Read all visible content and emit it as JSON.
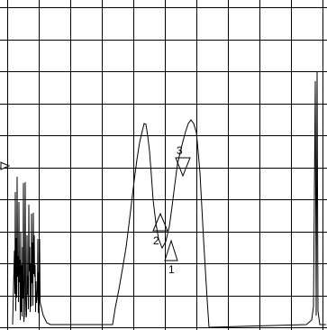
{
  "display": {
    "background": "#ffffff",
    "grid_color": "#000000",
    "trace_color": "#000000",
    "grid": {
      "cols": 10,
      "rows": 10
    }
  },
  "reference_marker": {
    "icon": "triangle-right-icon"
  },
  "markers": [
    {
      "label": "1",
      "icon": "triangle-up-icon"
    },
    {
      "label": "2",
      "icon": "triangle-up-icon"
    },
    {
      "label": "3",
      "icon": "triangle-down-icon"
    }
  ]
}
